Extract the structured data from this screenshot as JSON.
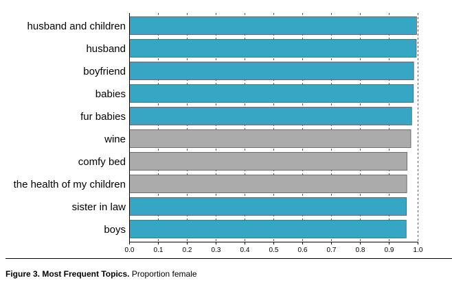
{
  "chart_data": {
    "type": "bar",
    "orientation": "horizontal",
    "categories": [
      "husband and children",
      "husband",
      "boyfriend",
      "babies",
      "fur babies",
      "wine",
      "comfy bed",
      "the health of my children",
      "sister in law",
      "boys"
    ],
    "values": [
      0.995,
      0.994,
      0.985,
      0.984,
      0.978,
      0.975,
      0.962,
      0.961,
      0.96,
      0.959
    ],
    "highlight": [
      true,
      true,
      true,
      true,
      true,
      false,
      false,
      false,
      true,
      true
    ],
    "xticks": [
      "0.0",
      "0.1",
      "0.2",
      "0.3",
      "0.4",
      "0.5",
      "0.6",
      "0.7",
      "0.8",
      "0.9",
      "1.0"
    ],
    "xlim": [
      0,
      1.0
    ],
    "xlabel": "",
    "ylabel": "",
    "grid": "vertical-dashed",
    "colors": {
      "highlight": "#37a6c4",
      "other": "#ababab",
      "bar_border": "#555555"
    }
  },
  "caption": {
    "label": "Figure 3. Most Frequent Topics.",
    "text": "Proportion female"
  }
}
